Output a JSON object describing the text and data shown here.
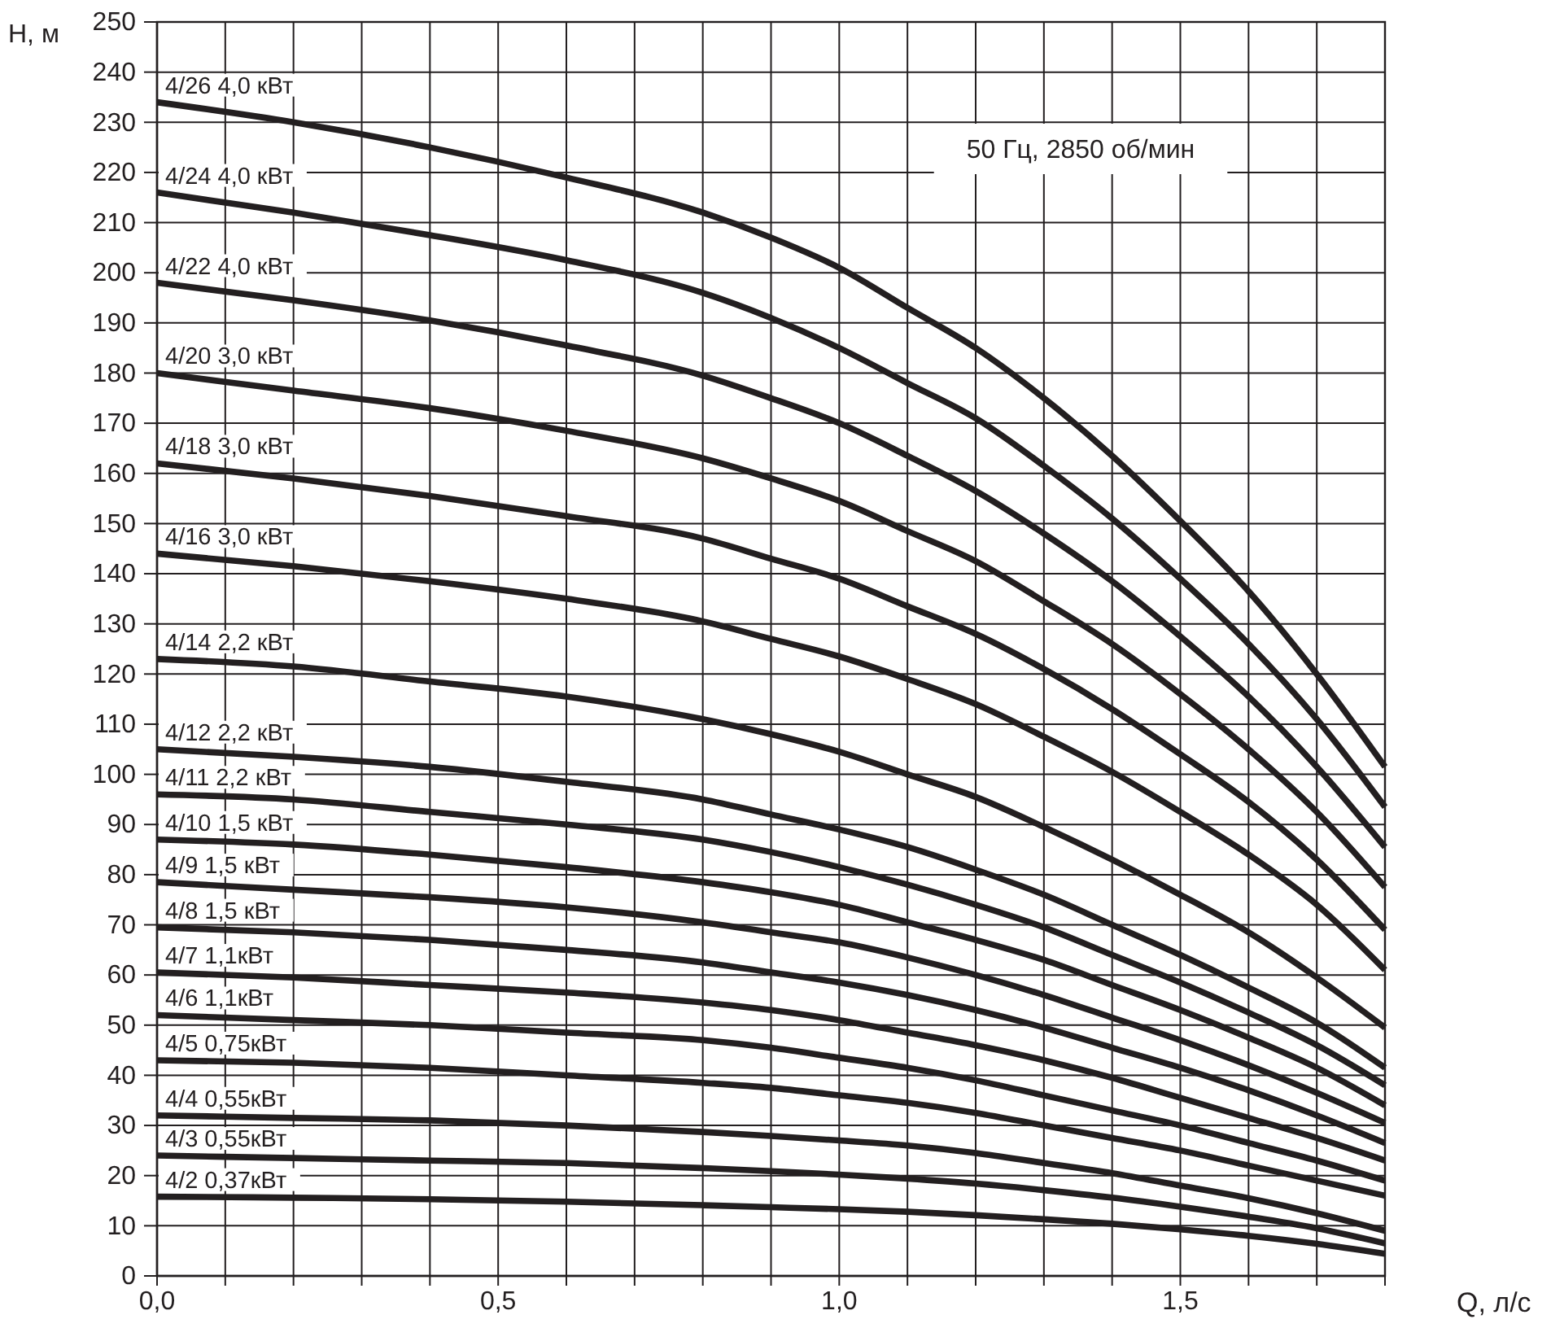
{
  "chart_data": {
    "type": "line",
    "title": "50 Гц, 2850 об/мин",
    "xlabel": "Q, л/с",
    "ylabel": "H, м",
    "x": [
      0,
      0.2,
      0.4,
      0.6,
      0.8,
      0.9,
      1,
      1.1,
      1.2,
      1.3,
      1.4,
      1.5,
      1.6,
      1.7,
      1.8
    ],
    "xlim": [
      0,
      1.8
    ],
    "xticks": [
      {
        "value": 0,
        "label": "0,0"
      },
      {
        "value": 0.1,
        "label": null
      },
      {
        "value": 0.2,
        "label": null
      },
      {
        "value": 0.3,
        "label": null
      },
      {
        "value": 0.4,
        "label": null
      },
      {
        "value": 0.5,
        "label": "0,5"
      },
      {
        "value": 0.6,
        "label": null
      },
      {
        "value": 0.7,
        "label": null
      },
      {
        "value": 0.8,
        "label": null
      },
      {
        "value": 0.9,
        "label": null
      },
      {
        "value": 1,
        "label": "1,0"
      },
      {
        "value": 1.1,
        "label": null
      },
      {
        "value": 1.2,
        "label": null
      },
      {
        "value": 1.3,
        "label": null
      },
      {
        "value": 1.4,
        "label": null
      },
      {
        "value": 1.5,
        "label": "1,5"
      },
      {
        "value": 1.6,
        "label": null
      },
      {
        "value": 1.7,
        "label": null
      },
      {
        "value": 1.8,
        "label": null
      }
    ],
    "ylim": [
      0,
      250
    ],
    "yticks": [
      0,
      10,
      20,
      30,
      40,
      50,
      60,
      70,
      80,
      90,
      100,
      110,
      120,
      130,
      140,
      150,
      160,
      170,
      180,
      190,
      200,
      210,
      220,
      230,
      240,
      250
    ],
    "grid": true,
    "line_style": "solid",
    "series": [
      {
        "name": "4/26 4,0 кВт",
        "color": "#231f20",
        "values": [
          234,
          230,
          225,
          219,
          212,
          207,
          201,
          193,
          185,
          175,
          163.5,
          150.5,
          136.5,
          120,
          101.5
        ]
      },
      {
        "name": "4/24 4,0 кВт",
        "color": "#231f20",
        "values": [
          216,
          212,
          207.5,
          202.5,
          196,
          191,
          185,
          178,
          171,
          161.5,
          151,
          139,
          126,
          111,
          93.5
        ]
      },
      {
        "name": "4/22 4,0 кВт",
        "color": "#231f20",
        "values": [
          198,
          194.5,
          190.5,
          185.5,
          179.5,
          175,
          170,
          163.5,
          156.5,
          148,
          138.5,
          127.5,
          115.5,
          101.5,
          85.5
        ]
      },
      {
        "name": "4/20 3,0 кВт",
        "color": "#231f20",
        "values": [
          180,
          176.5,
          173,
          168.5,
          163,
          159,
          154.5,
          148.5,
          142.5,
          134.5,
          126,
          116,
          105,
          92.5,
          77.5
        ]
      },
      {
        "name": "4/18 3,0 кВт",
        "color": "#231f20",
        "values": [
          162,
          159,
          155.5,
          151.5,
          147,
          143,
          139,
          133.5,
          128,
          121,
          113,
          104,
          94.5,
          83,
          69
        ]
      },
      {
        "name": "4/16 3,0 кВт",
        "color": "#231f20",
        "values": [
          144,
          141.5,
          138.5,
          135,
          130.5,
          127,
          123.5,
          119,
          114,
          107.5,
          100.5,
          92.5,
          84,
          74,
          61
        ]
      },
      {
        "name": "4/14 2,2 кВт",
        "color": "#231f20",
        "values": [
          123,
          121.5,
          118.5,
          115.5,
          111,
          108,
          104.5,
          100,
          95.5,
          89.5,
          83,
          76,
          68.5,
          59.5,
          49.5
        ]
      },
      {
        "name": "4/12 2,2 кВт",
        "color": "#231f20",
        "values": [
          105,
          103.5,
          101.5,
          98.5,
          95,
          92,
          89,
          85.5,
          81,
          76,
          70,
          64,
          57.5,
          50.5,
          41.5
        ]
      },
      {
        "name": "4/11 2,2 кВт",
        "color": "#231f20",
        "values": [
          96,
          95,
          92.5,
          90,
          87,
          84.5,
          81.5,
          78,
          74,
          69.5,
          64,
          58.5,
          52.5,
          46,
          38
        ]
      },
      {
        "name": "4/10 1,5 кВт",
        "color": "#231f20",
        "values": [
          87,
          86,
          84,
          81.5,
          78.5,
          76.5,
          74,
          70.5,
          67,
          63,
          58,
          53,
          47.5,
          41.5,
          34
        ]
      },
      {
        "name": "4/9 1,5 кВт",
        "color": "#231f20",
        "values": [
          78.5,
          77,
          75.5,
          73.5,
          70.5,
          68.5,
          66.5,
          63.5,
          60,
          56,
          51.5,
          47,
          42,
          36.5,
          30.5
        ]
      },
      {
        "name": "4/8 1,5 кВт",
        "color": "#231f20",
        "values": [
          69.5,
          68.5,
          67,
          65,
          62.5,
          60.5,
          58.5,
          56,
          53,
          49.5,
          45.5,
          41.5,
          37,
          32,
          26.5
        ]
      },
      {
        "name": "4/7 1,1кВт",
        "color": "#231f20",
        "values": [
          60.5,
          59.5,
          58,
          56.5,
          54.5,
          53,
          51,
          48.5,
          46,
          43,
          39.5,
          35.5,
          31.5,
          27.5,
          23
        ]
      },
      {
        "name": "4/6 1,1кВт",
        "color": "#231f20",
        "values": [
          52,
          51,
          50,
          48.5,
          47,
          45.5,
          43.5,
          41.5,
          39,
          36,
          33,
          30,
          26.5,
          23,
          19
        ]
      },
      {
        "name": "4/5 0,75кВт",
        "color": "#231f20",
        "values": [
          43,
          42.5,
          41.5,
          40,
          38.5,
          37.5,
          36,
          34.5,
          32.5,
          30,
          27.5,
          25,
          22,
          19,
          16
        ]
      },
      {
        "name": "4/4 0,55кВт",
        "color": "#231f20",
        "values": [
          32,
          31.5,
          31,
          30,
          28.7,
          27.9,
          27,
          26,
          24.5,
          22.5,
          20.5,
          18,
          15.5,
          12.5,
          9
        ]
      },
      {
        "name": "4/3 0,55кВт",
        "color": "#231f20",
        "values": [
          24,
          23.5,
          23,
          22.5,
          21.5,
          20.9,
          20.2,
          19.4,
          18.4,
          17.1,
          15.6,
          13.8,
          11.8,
          9.5,
          6.5
        ]
      },
      {
        "name": "4/2 0,37кВт",
        "color": "#231f20",
        "values": [
          15.8,
          15.6,
          15.3,
          14.8,
          14.1,
          13.7,
          13.3,
          12.8,
          12.1,
          11.3,
          10.4,
          9.3,
          8,
          6.4,
          4.4
        ]
      }
    ]
  }
}
